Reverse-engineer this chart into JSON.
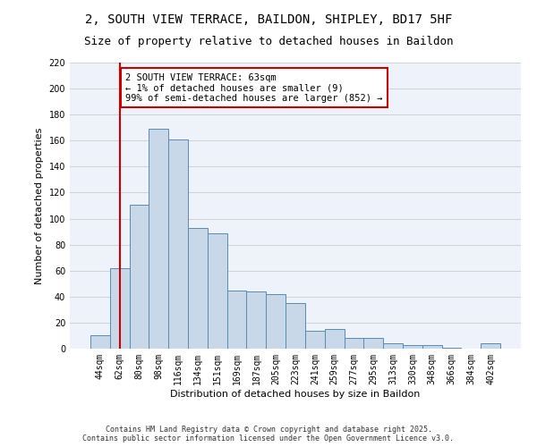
{
  "title_line1": "2, SOUTH VIEW TERRACE, BAILDON, SHIPLEY, BD17 5HF",
  "title_line2": "Size of property relative to detached houses in Baildon",
  "xlabel": "Distribution of detached houses by size in Baildon",
  "ylabel": "Number of detached properties",
  "categories": [
    "44sqm",
    "62sqm",
    "80sqm",
    "98sqm",
    "116sqm",
    "134sqm",
    "151sqm",
    "169sqm",
    "187sqm",
    "205sqm",
    "223sqm",
    "241sqm",
    "259sqm",
    "277sqm",
    "295sqm",
    "313sqm",
    "330sqm",
    "348sqm",
    "366sqm",
    "384sqm",
    "402sqm"
  ],
  "values": [
    10,
    62,
    111,
    169,
    161,
    93,
    89,
    45,
    44,
    42,
    35,
    14,
    15,
    8,
    8,
    4,
    3,
    3,
    1,
    0,
    4
  ],
  "bar_color": "#c8d8e8",
  "bar_edge_color": "#5a8ab0",
  "grid_color": "#cccccc",
  "bg_color": "#eef2fa",
  "red_line_x": 1,
  "annotation_text": "2 SOUTH VIEW TERRACE: 63sqm\n← 1% of detached houses are smaller (9)\n99% of semi-detached houses are larger (852) →",
  "annotation_box_color": "#ffffff",
  "annotation_border_color": "#cc0000",
  "ylim": [
    0,
    220
  ],
  "yticks": [
    0,
    20,
    40,
    60,
    80,
    100,
    120,
    140,
    160,
    180,
    200,
    220
  ],
  "footer_text": "Contains HM Land Registry data © Crown copyright and database right 2025.\nContains public sector information licensed under the Open Government Licence v3.0.",
  "title_fontsize": 10,
  "subtitle_fontsize": 9,
  "axis_label_fontsize": 8,
  "tick_fontsize": 7,
  "annotation_fontsize": 7.5,
  "footer_fontsize": 6
}
